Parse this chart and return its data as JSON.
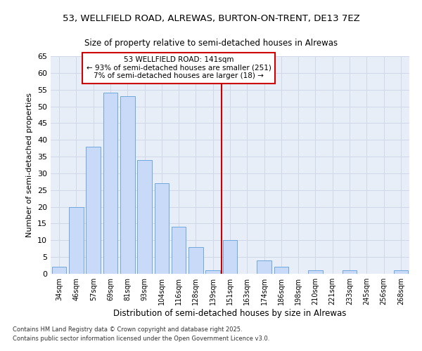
{
  "title": "53, WELLFIELD ROAD, ALREWAS, BURTON-ON-TRENT, DE13 7EZ",
  "subtitle": "Size of property relative to semi-detached houses in Alrewas",
  "xlabel": "Distribution of semi-detached houses by size in Alrewas",
  "ylabel": "Number of semi-detached properties",
  "bin_labels": [
    "34sqm",
    "46sqm",
    "57sqm",
    "69sqm",
    "81sqm",
    "93sqm",
    "104sqm",
    "116sqm",
    "128sqm",
    "139sqm",
    "151sqm",
    "163sqm",
    "174sqm",
    "186sqm",
    "198sqm",
    "210sqm",
    "221sqm",
    "233sqm",
    "245sqm",
    "256sqm",
    "268sqm"
  ],
  "bar_values": [
    2,
    20,
    38,
    54,
    53,
    34,
    27,
    14,
    8,
    1,
    10,
    0,
    4,
    2,
    0,
    1,
    0,
    1,
    0,
    0,
    1
  ],
  "bar_color": "#c9daf8",
  "bar_edge_color": "#6fa8dc",
  "marker_bin_index": 9,
  "annotation_title": "53 WELLFIELD ROAD: 141sqm",
  "annotation_line1": "← 93% of semi-detached houses are smaller (251)",
  "annotation_line2": "7% of semi-detached houses are larger (18) →",
  "annotation_box_color": "#ffffff",
  "annotation_border_color": "#cc0000",
  "vline_color": "#cc0000",
  "grid_color": "#d0d8e8",
  "bg_color": "#e8eef8",
  "ylim": [
    0,
    65
  ],
  "yticks": [
    0,
    5,
    10,
    15,
    20,
    25,
    30,
    35,
    40,
    45,
    50,
    55,
    60,
    65
  ],
  "footnote1": "Contains HM Land Registry data © Crown copyright and database right 2025.",
  "footnote2": "Contains public sector information licensed under the Open Government Licence v3.0."
}
